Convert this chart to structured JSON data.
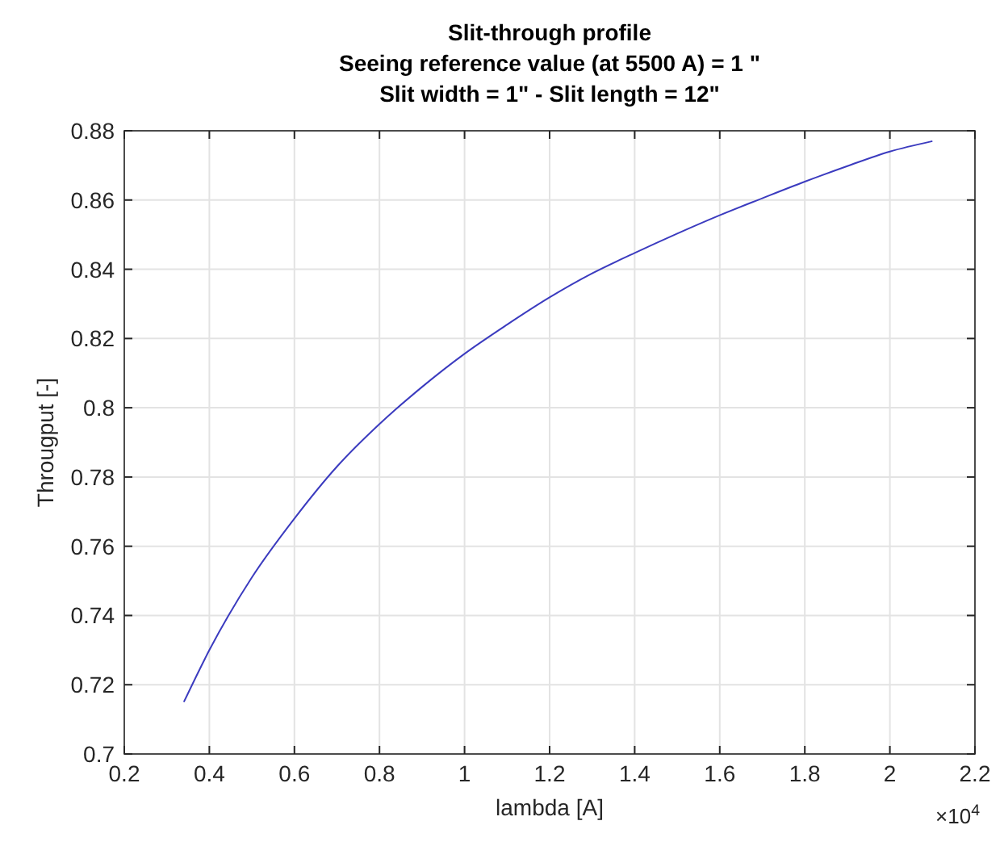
{
  "chart_data": {
    "type": "line",
    "title": "Slit-through profile",
    "subtitle": "Seeing reference value (at 5500 A) = 1 \"\nSlit width = 1\" - Slit length = 12\"",
    "xlabel": "lambda [A]",
    "ylabel": "Througput [-]",
    "annotations": [
      "×10$^{4}$"
    ],
    "x": [
      0.34,
      0.4,
      0.5,
      0.6,
      0.7,
      0.8,
      0.9,
      0.999,
      1.1,
      1.199,
      1.3,
      1.4,
      1.5,
      1.6,
      1.7,
      1.8,
      1.9,
      2.0,
      2.1
    ],
    "series": [
      {
        "color": "#3b3bbf",
        "values": [
          0.715,
          0.73,
          0.751,
          0.768,
          0.783,
          0.7953,
          0.806,
          0.8155,
          0.824,
          0.8318,
          0.8388,
          0.8447,
          0.8503,
          0.8556,
          0.8605,
          0.8653,
          0.8698,
          0.874,
          0.877
        ]
      }
    ],
    "xlim": [
      0.2,
      2.2
    ],
    "xticks": [
      0.2,
      0.4,
      0.6,
      0.8,
      1,
      1.2,
      1.4,
      1.6,
      1.8,
      2,
      2.2
    ],
    "ylim": [
      0.7,
      0.88
    ],
    "yticks": [
      0.7,
      0.72,
      0.74,
      0.76,
      0.78,
      0.8,
      0.82,
      0.84,
      0.86,
      0.88
    ],
    "grid": true,
    "marker": "none",
    "line_style": "solid"
  }
}
